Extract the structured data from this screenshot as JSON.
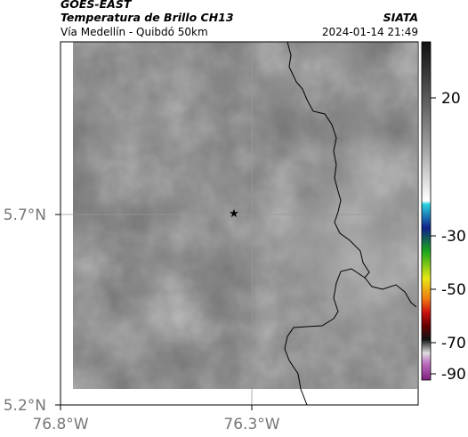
{
  "header": {
    "source": "GOES-EAST",
    "title": "Temperatura de Brillo CH13",
    "subtitle": "Vía Medellín - Quibdó 50km",
    "agency": "SIATA",
    "timestamp": "2024-01-14 21:49"
  },
  "map": {
    "lat_labels": [
      "5.7°N",
      "5.2°N"
    ],
    "lon_labels": [
      "76.8°W",
      "76.3°W"
    ]
  },
  "colorbar": {
    "ticks": [
      20,
      -30,
      -50,
      -70,
      -90
    ]
  }
}
